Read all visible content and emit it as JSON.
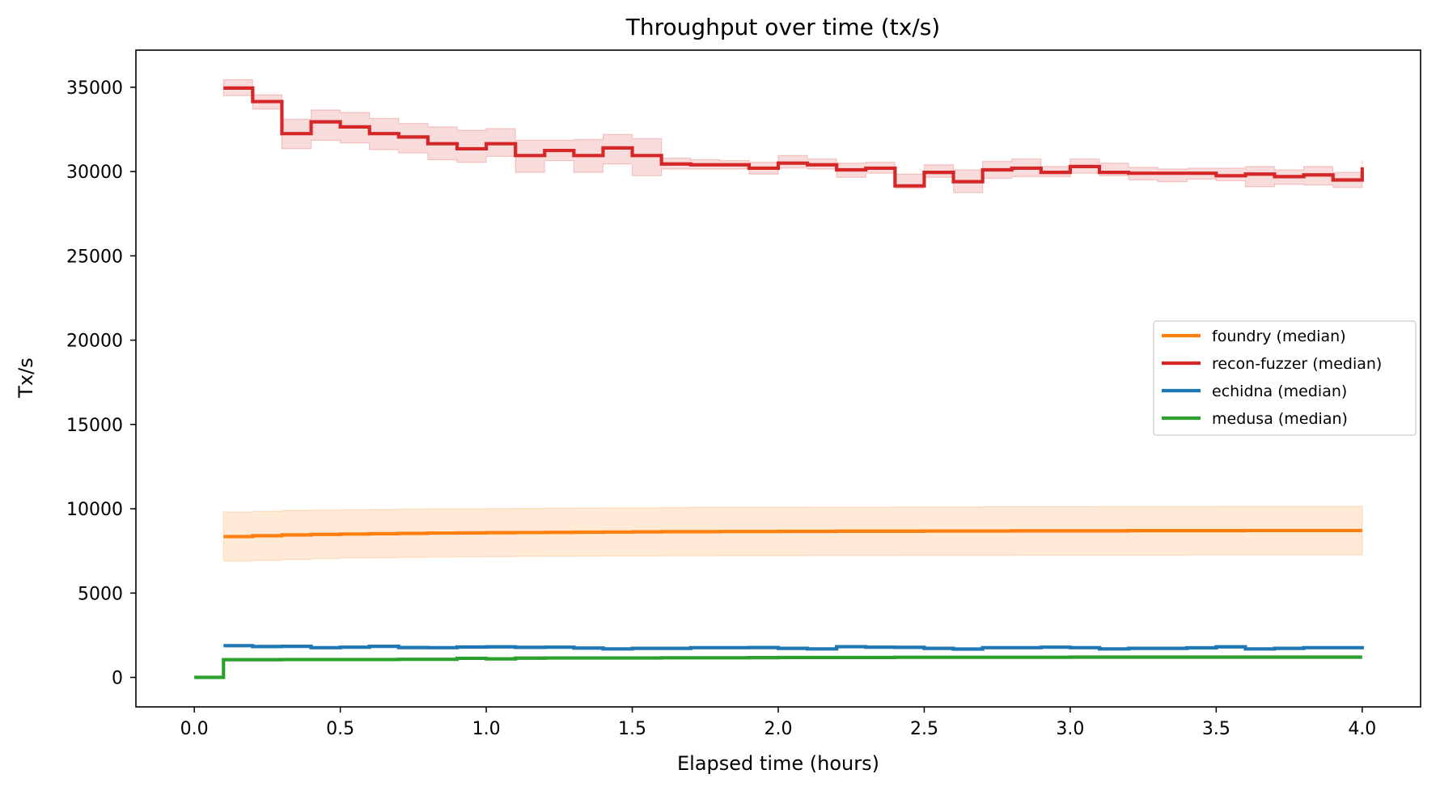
{
  "chart_data": {
    "type": "line",
    "title": "Throughput over time (tx/s)",
    "xlabel": "Elapsed time (hours)",
    "ylabel": "Tx/s",
    "xlim": [
      -0.2,
      4.2
    ],
    "ylim": [
      -1750,
      37200
    ],
    "x_ticks": [
      0.0,
      0.5,
      1.0,
      1.5,
      2.0,
      2.5,
      3.0,
      3.5,
      4.0
    ],
    "x_tick_labels": [
      "0.0",
      "0.5",
      "1.0",
      "1.5",
      "2.0",
      "2.5",
      "3.0",
      "3.5",
      "4.0"
    ],
    "y_ticks": [
      0,
      5000,
      10000,
      15000,
      20000,
      25000,
      30000,
      35000
    ],
    "y_tick_labels": [
      "0",
      "5000",
      "10000",
      "15000",
      "20000",
      "25000",
      "30000",
      "35000"
    ],
    "grid": false,
    "legend_position": "center-right",
    "step": "post",
    "series": [
      {
        "name": "foundry (median)",
        "color": "#ff7f0e",
        "x": [
          0.1,
          0.2,
          0.3,
          0.4,
          0.5,
          0.6,
          0.7,
          0.8,
          0.9,
          1.0,
          1.1,
          1.2,
          1.3,
          1.4,
          1.5,
          1.6,
          1.7,
          1.8,
          1.9,
          2.0,
          2.1,
          2.2,
          2.3,
          2.4,
          2.5,
          2.6,
          2.7,
          2.8,
          2.9,
          3.0,
          3.1,
          3.2,
          3.3,
          3.4,
          3.5,
          3.6,
          3.7,
          3.8,
          3.9,
          4.0
        ],
        "values": [
          8350,
          8400,
          8450,
          8480,
          8500,
          8520,
          8540,
          8560,
          8570,
          8580,
          8590,
          8600,
          8610,
          8620,
          8630,
          8640,
          8640,
          8650,
          8650,
          8660,
          8660,
          8670,
          8670,
          8670,
          8680,
          8680,
          8680,
          8690,
          8690,
          8690,
          8690,
          8700,
          8700,
          8700,
          8700,
          8710,
          8710,
          8710,
          8710,
          8710
        ],
        "lower": [
          6900,
          6950,
          7000,
          7050,
          7080,
          7100,
          7120,
          7140,
          7150,
          7160,
          7170,
          7180,
          7190,
          7200,
          7200,
          7210,
          7210,
          7220,
          7220,
          7220,
          7230,
          7230,
          7230,
          7240,
          7240,
          7240,
          7240,
          7250,
          7250,
          7250,
          7250,
          7250,
          7250,
          7260,
          7260,
          7260,
          7260,
          7260,
          7260,
          7260
        ],
        "upper": [
          9800,
          9850,
          9900,
          9920,
          9940,
          9960,
          9980,
          9990,
          10000,
          10010,
          10020,
          10030,
          10040,
          10050,
          10060,
          10070,
          10080,
          10080,
          10090,
          10090,
          10100,
          10100,
          10100,
          10110,
          10110,
          10110,
          10120,
          10120,
          10120,
          10120,
          10130,
          10130,
          10130,
          10130,
          10140,
          10140,
          10140,
          10140,
          10140,
          10140
        ]
      },
      {
        "name": "recon-fuzzer (median)",
        "color": "#d62728",
        "x": [
          0.1,
          0.2,
          0.3,
          0.4,
          0.5,
          0.6,
          0.7,
          0.8,
          0.9,
          1.0,
          1.1,
          1.2,
          1.3,
          1.4,
          1.5,
          1.6,
          1.7,
          1.8,
          1.9,
          2.0,
          2.1,
          2.2,
          2.3,
          2.4,
          2.5,
          2.6,
          2.7,
          2.8,
          2.9,
          3.0,
          3.1,
          3.2,
          3.3,
          3.4,
          3.5,
          3.6,
          3.7,
          3.8,
          3.9,
          4.0
        ],
        "values": [
          34950,
          34150,
          32250,
          32950,
          32650,
          32250,
          32050,
          31650,
          31350,
          31650,
          30950,
          31250,
          30950,
          31400,
          30950,
          30450,
          30400,
          30400,
          30200,
          30500,
          30400,
          30100,
          30200,
          29150,
          29950,
          29400,
          30100,
          30200,
          29950,
          30300,
          29950,
          29900,
          29900,
          29900,
          29750,
          29850,
          29700,
          29800,
          29500,
          30250
        ],
        "lower": [
          34500,
          33700,
          31350,
          31850,
          31700,
          31300,
          31100,
          30700,
          30550,
          30900,
          29950,
          30650,
          29950,
          30450,
          29750,
          30150,
          30150,
          30150,
          29850,
          30200,
          30150,
          29650,
          29900,
          29000,
          29650,
          28750,
          29600,
          29700,
          29700,
          29900,
          29750,
          29500,
          29400,
          29550,
          29450,
          29100,
          29250,
          29200,
          29050,
          29950
        ],
        "upper": [
          35450,
          34550,
          33100,
          33650,
          33500,
          33150,
          32850,
          32650,
          32450,
          32550,
          31850,
          31850,
          31900,
          32200,
          31950,
          30800,
          30700,
          30650,
          30550,
          30950,
          30750,
          30500,
          30550,
          29850,
          30400,
          30100,
          30600,
          30750,
          30300,
          30750,
          30500,
          30250,
          30150,
          30200,
          30200,
          30300,
          30100,
          30300,
          29950,
          30650
        ]
      },
      {
        "name": "echidna (median)",
        "color": "#1f77b4",
        "x": [
          0.1,
          0.2,
          0.3,
          0.4,
          0.5,
          0.6,
          0.7,
          0.8,
          0.9,
          1.0,
          1.1,
          1.2,
          1.3,
          1.4,
          1.5,
          1.6,
          1.7,
          1.8,
          1.9,
          2.0,
          2.1,
          2.2,
          2.3,
          2.4,
          2.5,
          2.6,
          2.7,
          2.8,
          2.9,
          3.0,
          3.1,
          3.2,
          3.3,
          3.4,
          3.5,
          3.6,
          3.7,
          3.8,
          3.9,
          4.0
        ],
        "values": [
          1880,
          1830,
          1840,
          1760,
          1790,
          1840,
          1770,
          1760,
          1800,
          1810,
          1780,
          1790,
          1740,
          1690,
          1720,
          1720,
          1760,
          1760,
          1770,
          1720,
          1690,
          1820,
          1790,
          1780,
          1720,
          1680,
          1760,
          1760,
          1790,
          1760,
          1690,
          1720,
          1720,
          1750,
          1810,
          1690,
          1720,
          1760,
          1760,
          1660
        ],
        "lower": [],
        "upper": []
      },
      {
        "name": "medusa (median)",
        "color": "#2ca02c",
        "x": [
          0.0,
          0.1,
          0.2,
          0.3,
          0.4,
          0.5,
          0.6,
          0.7,
          0.8,
          0.9,
          1.0,
          1.1,
          1.2,
          1.3,
          1.4,
          1.5,
          1.6,
          1.7,
          1.8,
          1.9,
          2.0,
          2.1,
          2.2,
          2.3,
          2.4,
          2.5,
          2.6,
          2.7,
          2.8,
          2.9,
          3.0,
          3.1,
          3.2,
          3.3,
          3.4,
          3.5,
          3.6,
          3.7,
          3.8,
          3.9,
          4.0
        ],
        "values": [
          0,
          1050,
          1050,
          1060,
          1060,
          1060,
          1060,
          1070,
          1070,
          1130,
          1100,
          1140,
          1150,
          1150,
          1150,
          1150,
          1160,
          1160,
          1160,
          1170,
          1180,
          1180,
          1180,
          1180,
          1190,
          1190,
          1190,
          1190,
          1190,
          1190,
          1200,
          1200,
          1200,
          1200,
          1200,
          1200,
          1200,
          1200,
          1200,
          1200,
          1200
        ],
        "lower": [],
        "upper": []
      }
    ]
  }
}
